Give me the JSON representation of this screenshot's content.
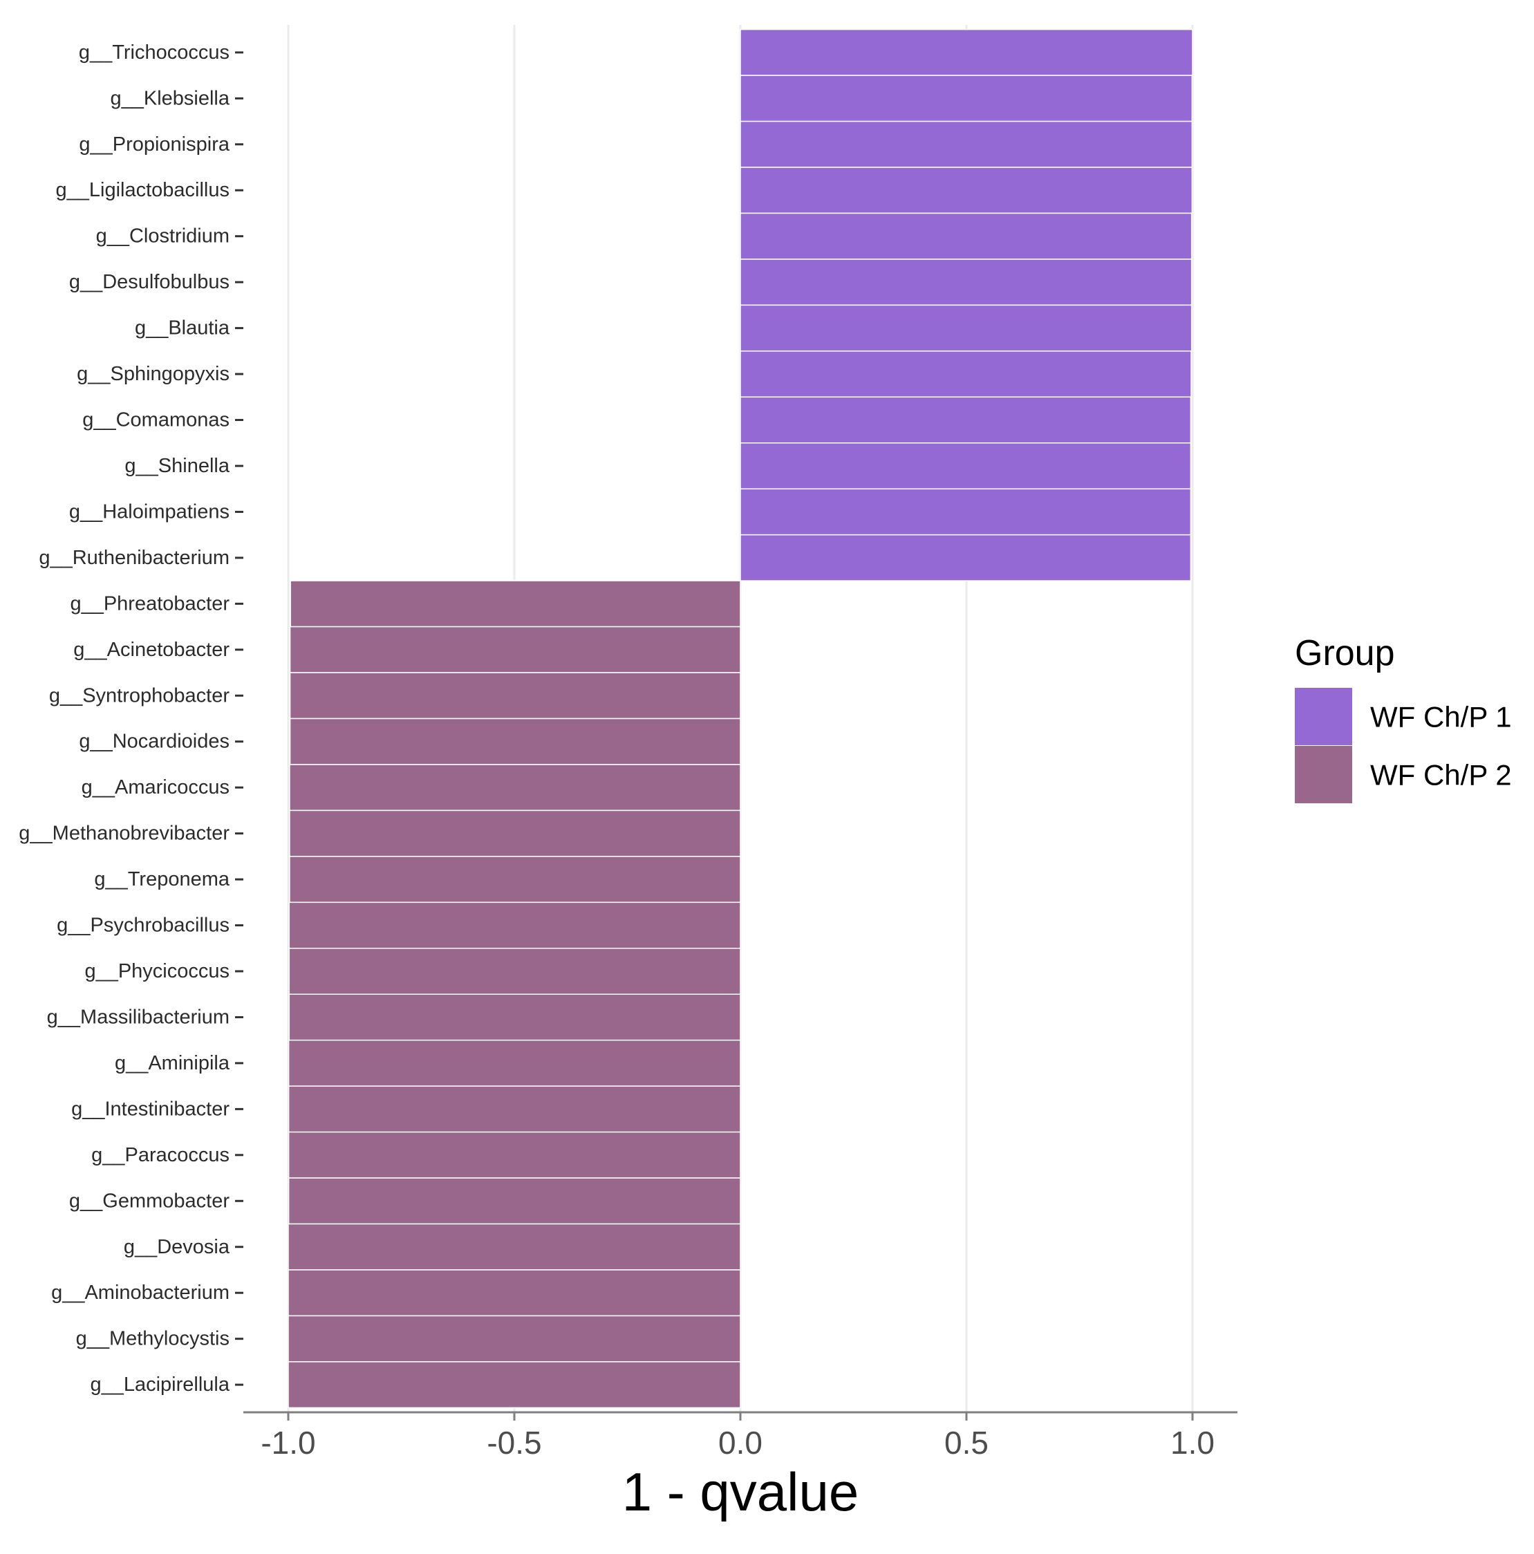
{
  "chart_data": {
    "type": "bar",
    "orientation": "horizontal",
    "categories": [
      "g__Trichococcus",
      "g__Klebsiella",
      "g__Propionispira",
      "g__Ligilactobacillus",
      "g__Clostridium",
      "g__Desulfobulbus",
      "g__Blautia",
      "g__Sphingopyxis",
      "g__Comamonas",
      "g__Shinella",
      "g__Haloimpatiens",
      "g__Ruthenibacterium",
      "g__Phreatobacter",
      "g__Acinetobacter",
      "g__Syntrophobacter",
      "g__Nocardioides",
      "g__Amaricoccus",
      "g__Methanobrevibacter",
      "g__Treponema",
      "g__Psychrobacillus",
      "g__Phycicoccus",
      "g__Massilibacterium",
      "g__Aminipila",
      "g__Intestinibacter",
      "g__Paracoccus",
      "g__Gemmobacter",
      "g__Devosia",
      "g__Aminobacterium",
      "g__Methylocystis",
      "g__Lacipirellula"
    ],
    "values": [
      1.0,
      0.999,
      0.999,
      0.999,
      0.998,
      0.998,
      0.998,
      0.997,
      0.996,
      0.996,
      0.996,
      0.996,
      -0.995,
      -0.996,
      -0.996,
      -0.996,
      -0.997,
      -0.997,
      -0.997,
      -0.998,
      -0.998,
      -0.998,
      -0.999,
      -0.999,
      -0.999,
      -0.999,
      -1.0,
      -1.0,
      -1.0,
      -1.0
    ],
    "groups": [
      "WF Ch/P 1",
      "WF Ch/P 1",
      "WF Ch/P 1",
      "WF Ch/P 1",
      "WF Ch/P 1",
      "WF Ch/P 1",
      "WF Ch/P 1",
      "WF Ch/P 1",
      "WF Ch/P 1",
      "WF Ch/P 1",
      "WF Ch/P 1",
      "WF Ch/P 1",
      "WF Ch/P 2",
      "WF Ch/P 2",
      "WF Ch/P 2",
      "WF Ch/P 2",
      "WF Ch/P 2",
      "WF Ch/P 2",
      "WF Ch/P 2",
      "WF Ch/P 2",
      "WF Ch/P 2",
      "WF Ch/P 2",
      "WF Ch/P 2",
      "WF Ch/P 2",
      "WF Ch/P 2",
      "WF Ch/P 2",
      "WF Ch/P 2",
      "WF Ch/P 2",
      "WF Ch/P 2",
      "WF Ch/P 2"
    ],
    "xlabel": "1 - qvalue",
    "ylabel": "",
    "xlim": [
      -1.1,
      1.1
    ],
    "xticks": [
      "-1.0",
      "-0.5",
      "0.0",
      "0.5",
      "1.0"
    ],
    "xtick_values": [
      -1.0,
      -0.5,
      0.0,
      0.5,
      1.0
    ],
    "grid": "vertical major lines",
    "legend": {
      "title": "Group",
      "placement": "right",
      "entries": [
        {
          "name": "WF Ch/P 1",
          "color": "#9569d3"
        },
        {
          "name": "WF Ch/P 2",
          "color": "#98678b"
        }
      ]
    },
    "bar_outline_color": "#ffffff"
  }
}
